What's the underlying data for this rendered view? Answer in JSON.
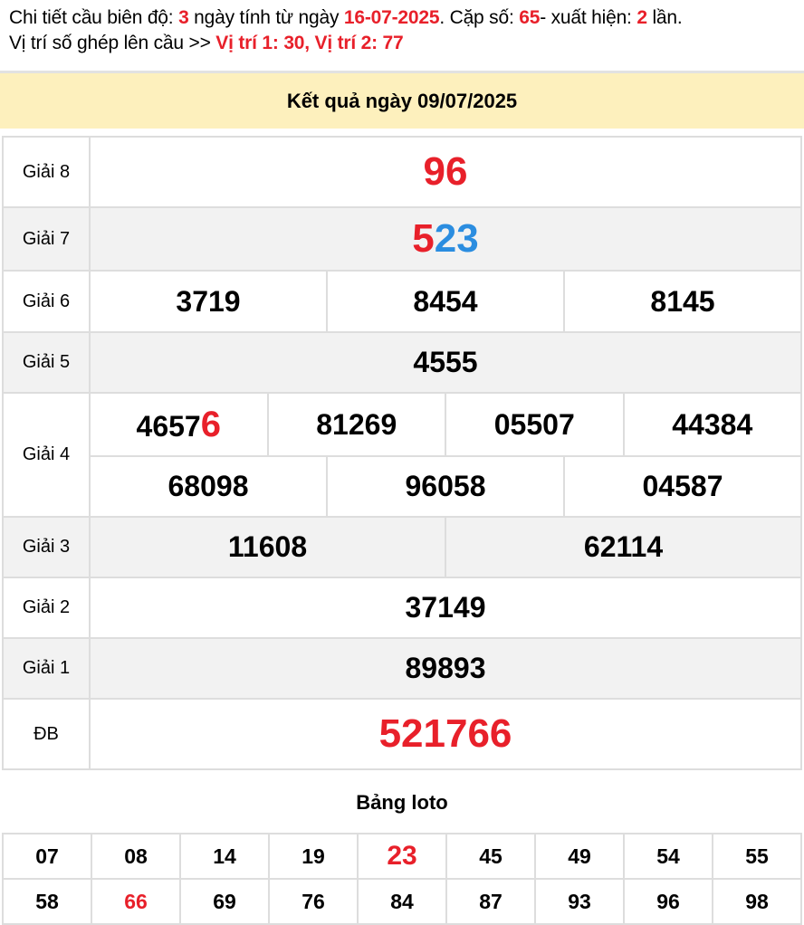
{
  "info": {
    "l1a": "Chi tiết cầu biên độ: ",
    "days": "3",
    "l1b": " ngày tính từ ngày ",
    "date": "16-07-2025",
    "l1c": ". Cặp số: ",
    "pair": "65",
    "l1d": "- xuất hiện: ",
    "count": "2",
    "l1e": " lần.",
    "l2a": "Vị trí số ghép lên cầu >> ",
    "pos": "Vị trí 1: 30, Vị trí 2: 77"
  },
  "header": "Kết quả ngày 09/07/2025",
  "prizes": {
    "g8": {
      "label": "Giải 8",
      "value": "96"
    },
    "g7": {
      "label": "Giải 7",
      "hl": "5",
      "rest": "23"
    },
    "g6": {
      "label": "Giải 6",
      "values": [
        "3719",
        "8454",
        "8145"
      ]
    },
    "g5": {
      "label": "Giải 5",
      "value": "4555"
    },
    "g4": {
      "label": "Giải 4",
      "first_main": "4657",
      "first_hl": "6",
      "row1": [
        "81269",
        "05507",
        "44384"
      ],
      "row2": [
        "68098",
        "96058",
        "04587"
      ]
    },
    "g3": {
      "label": "Giải 3",
      "values": [
        "11608",
        "62114"
      ]
    },
    "g2": {
      "label": "Giải 2",
      "value": "37149"
    },
    "g1": {
      "label": "Giải 1",
      "value": "89893"
    },
    "db": {
      "label": "ĐB",
      "value": "521766"
    }
  },
  "loto": {
    "title": "Bảng loto",
    "row1": [
      "07",
      "08",
      "14",
      "19",
      "23",
      "45",
      "49",
      "54",
      "55"
    ],
    "row2": [
      "58",
      "66",
      "69",
      "76",
      "84",
      "87",
      "93",
      "96",
      "98"
    ],
    "highlighted": [
      "23",
      "66"
    ]
  },
  "colors": {
    "red": "#e8202a",
    "blue": "#2b8de0",
    "header_bg": "#fdf0bd"
  }
}
